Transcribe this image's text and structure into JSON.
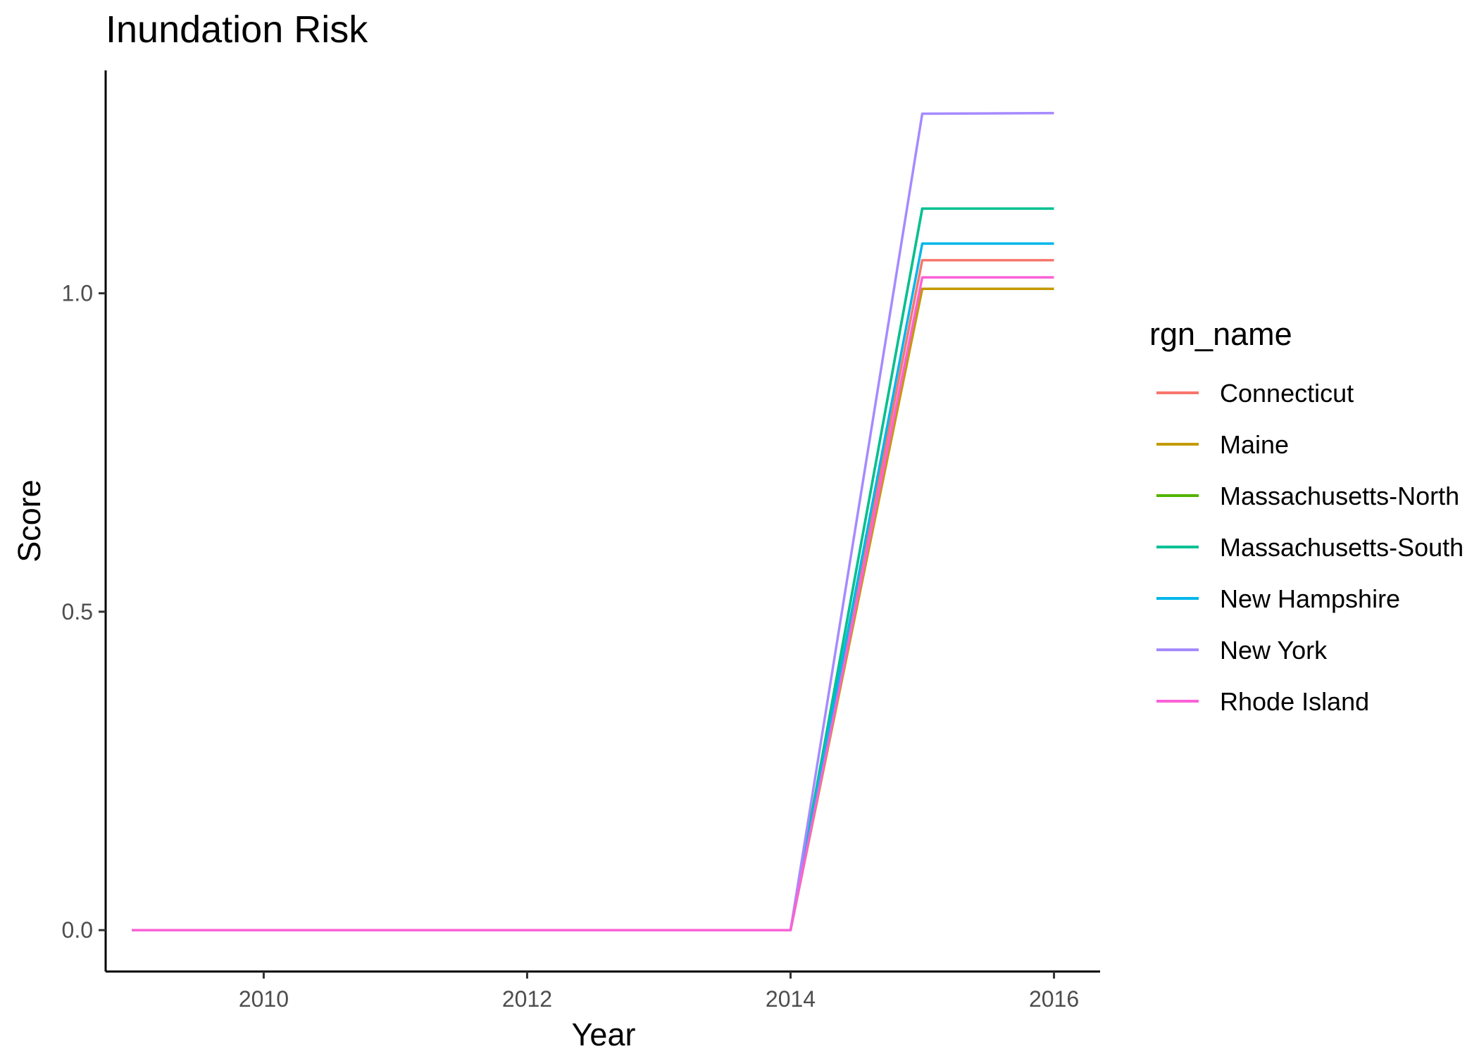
{
  "chart_data": {
    "type": "line",
    "title": "Inundation Risk",
    "xlabel": "Year",
    "ylabel": "Score",
    "xlim": [
      2008.8,
      2016.35
    ],
    "ylim": [
      -0.065,
      1.35
    ],
    "x_ticks": [
      2010,
      2012,
      2014,
      2016
    ],
    "x_tick_labels": [
      "2010",
      "2012",
      "2014",
      "2016"
    ],
    "y_ticks": [
      0,
      0.5,
      1
    ],
    "y_tick_labels": [
      "0.0",
      "0.5",
      "1.0"
    ],
    "grid": false,
    "legend_title": "rgn_name",
    "legend_position": "right",
    "x": [
      2009,
      2010,
      2011,
      2012,
      2013,
      2014,
      2015,
      2016
    ],
    "series": [
      {
        "name": "Connecticut",
        "color": "#F8766D",
        "values": [
          0,
          0,
          0,
          0,
          0,
          0,
          1.052,
          1.052
        ]
      },
      {
        "name": "Maine",
        "color": "#C49A00",
        "values": [
          0,
          0,
          0,
          0,
          0,
          0,
          1.007,
          1.007
        ]
      },
      {
        "name": "Massachusetts-North",
        "color": "#53B400",
        "values": [
          0,
          0,
          0,
          0,
          0,
          0,
          1.133,
          1.133
        ]
      },
      {
        "name": "Massachusetts-South",
        "color": "#00C094",
        "values": [
          0,
          0,
          0,
          0,
          0,
          0,
          1.133,
          1.133
        ]
      },
      {
        "name": "New Hampshire",
        "color": "#00B6EB",
        "values": [
          0,
          0,
          0,
          0,
          0,
          0,
          1.078,
          1.078
        ]
      },
      {
        "name": "New York",
        "color": "#A58AFF",
        "values": [
          0,
          0,
          0,
          0,
          0,
          0,
          1.282,
          1.283
        ]
      },
      {
        "name": "Rhode Island",
        "color": "#FB61D7",
        "values": [
          0,
          0,
          0,
          0,
          0,
          0,
          1.025,
          1.025
        ]
      }
    ]
  }
}
